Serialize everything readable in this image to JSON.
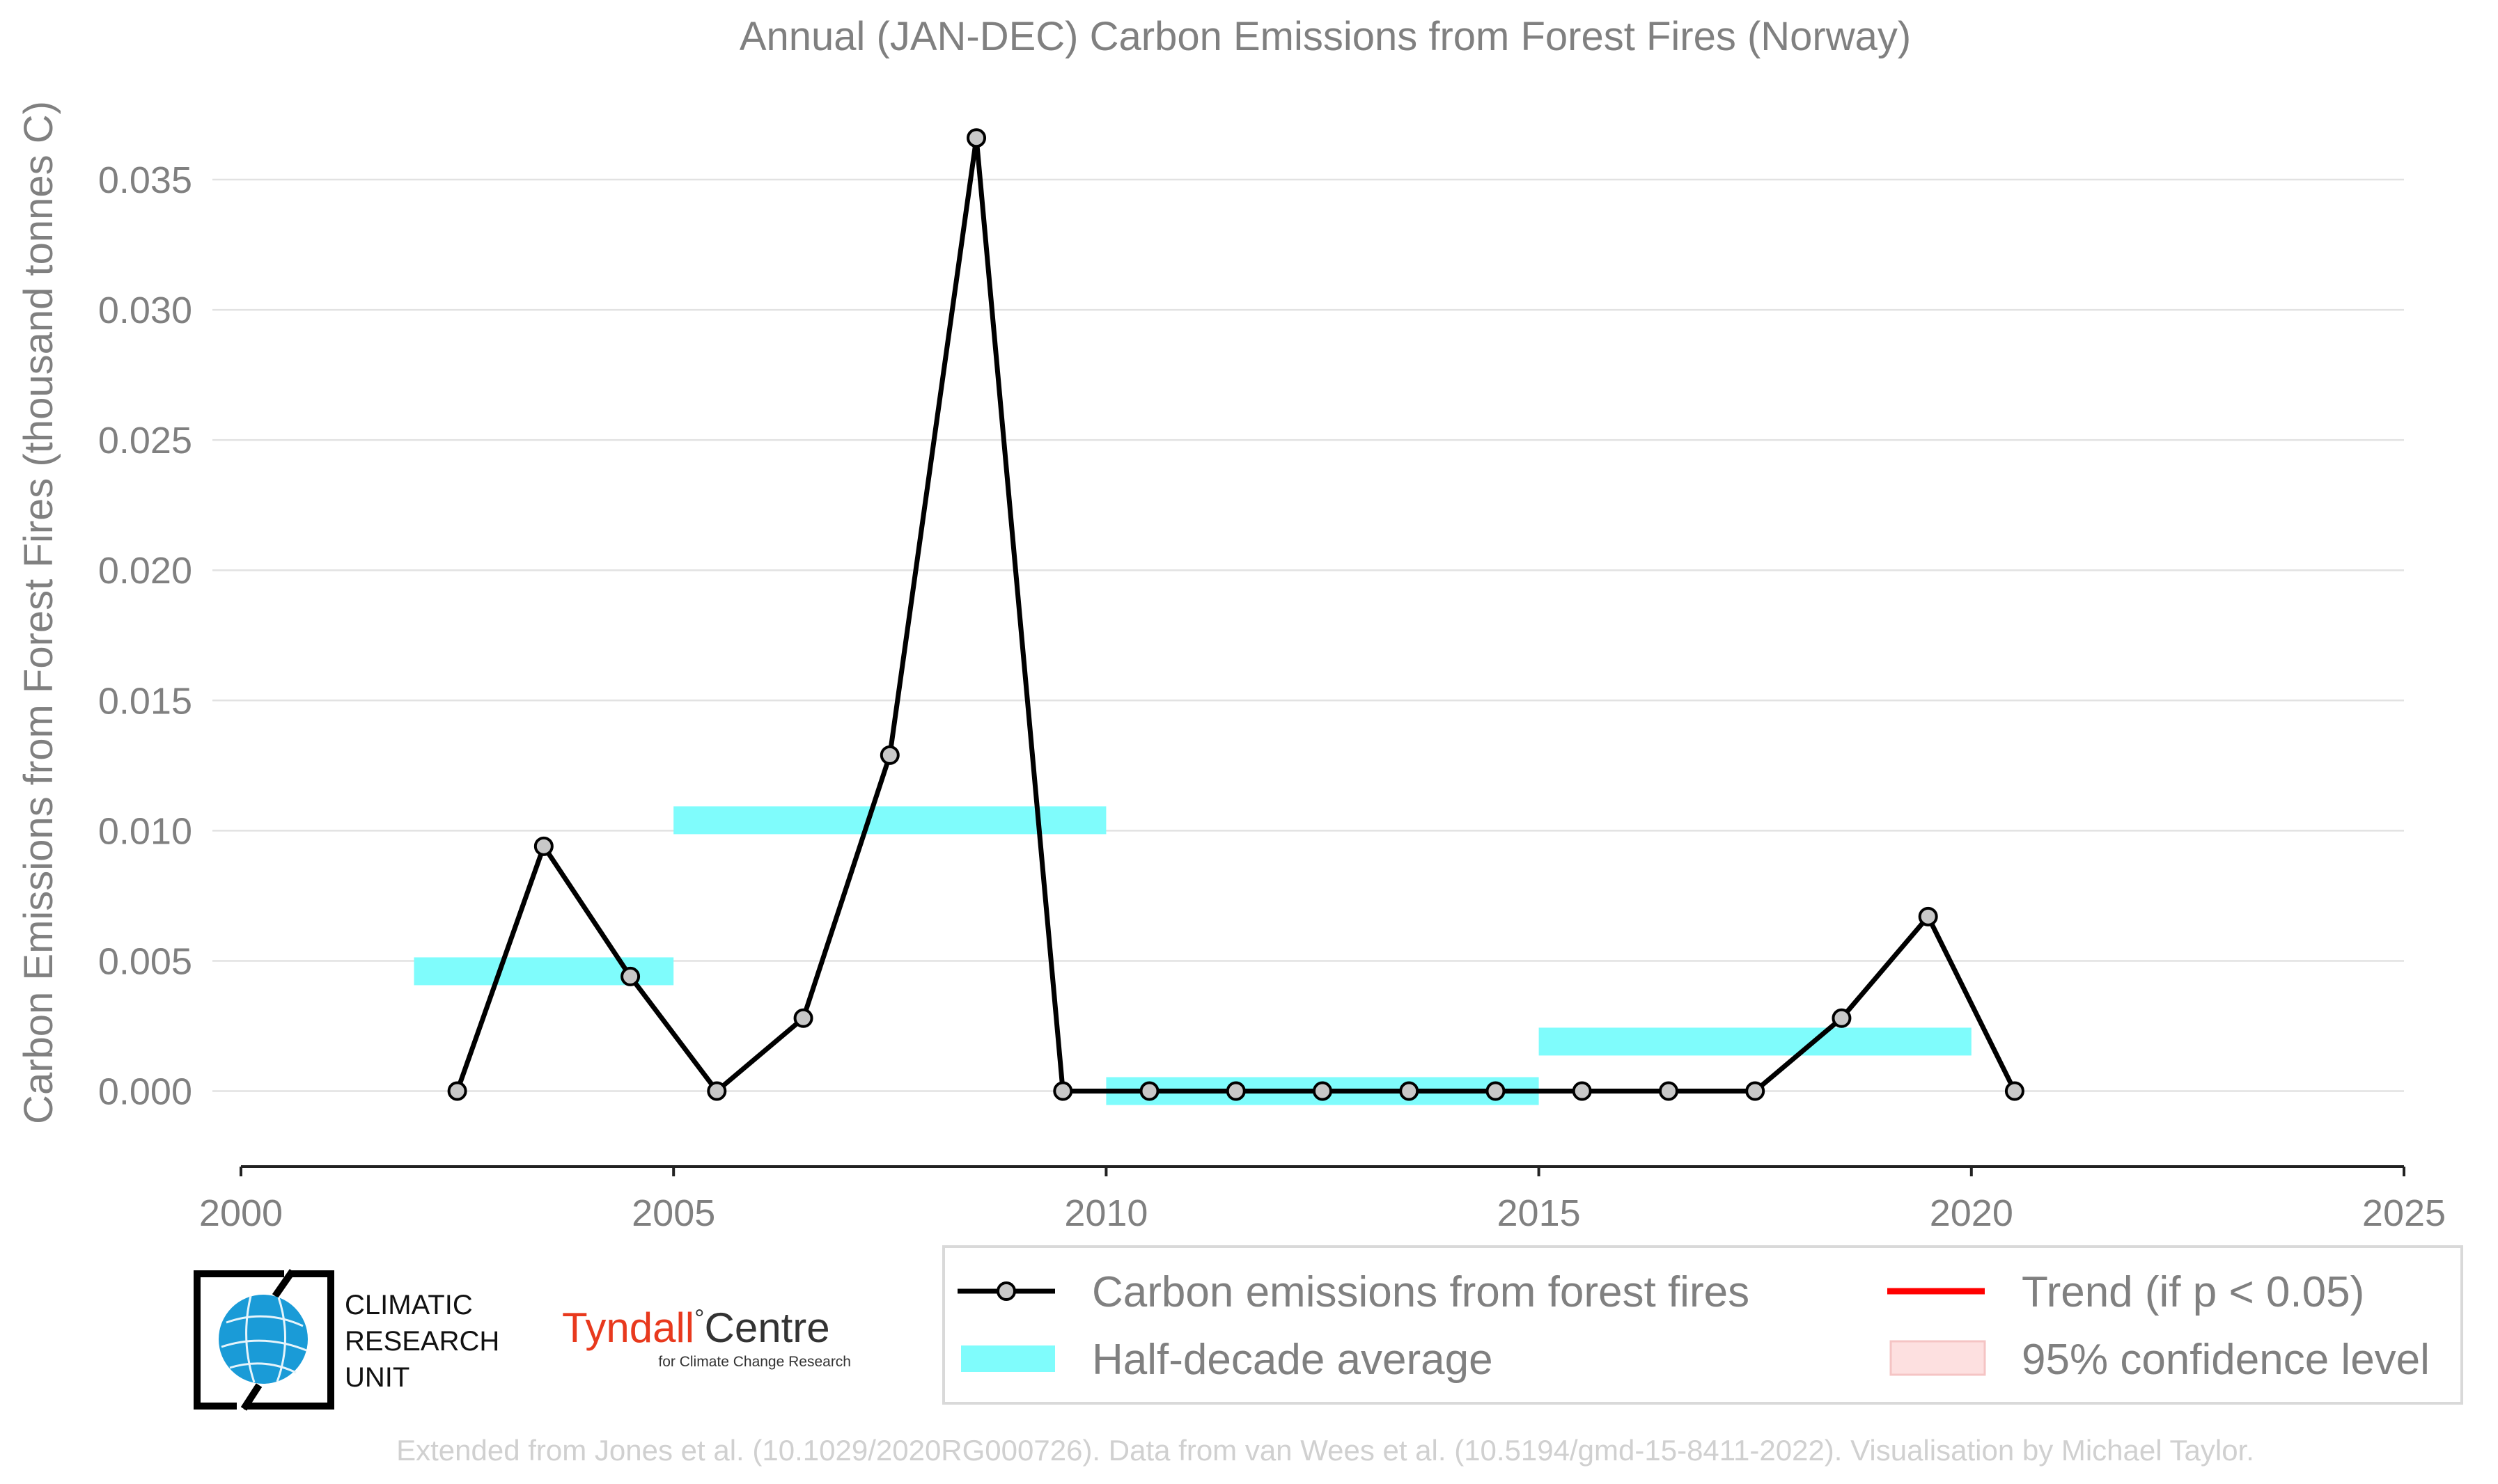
{
  "chart_data": {
    "type": "line",
    "title": "Annual (JAN-DEC) Carbon Emissions from Forest Fires (Norway)",
    "xlabel": "",
    "ylabel": "Carbon Emissions from Forest Fires (thousand tonnes C)",
    "xlim": [
      2000,
      2025
    ],
    "ylim": [
      -0.0029,
      0.0373
    ],
    "xticks": [
      "2000",
      "2005",
      "2010",
      "2015",
      "2020",
      "2025"
    ],
    "yticks": [
      "0.000",
      "0.005",
      "0.010",
      "0.015",
      "0.020",
      "0.025",
      "0.030",
      "0.035"
    ],
    "grid": true,
    "series": [
      {
        "name": "Carbon emissions from forest fires",
        "color": "#000000",
        "marker_fill": "#c8c8c8",
        "x": [
          2002.5,
          2003.5,
          2004.5,
          2005.5,
          2006.5,
          2007.5,
          2008.5,
          2009.5,
          2010.5,
          2011.5,
          2012.5,
          2013.5,
          2014.5,
          2015.5,
          2016.5,
          2017.5,
          2018.5,
          2019.5,
          2020.5
        ],
        "values": [
          0.0,
          0.0094,
          0.0044,
          0.0,
          0.0028,
          0.0129,
          0.0366,
          0.0,
          0.0,
          0.0,
          0.0,
          0.0,
          0.0,
          0.0,
          0.0,
          0.0,
          0.0028,
          0.0067,
          0.0
        ]
      }
    ],
    "half_decade_average": {
      "name": "Half-decade average",
      "color": "#7ffcfc",
      "segments": [
        {
          "x0": 2002,
          "x1": 2005,
          "value": 0.0046
        },
        {
          "x0": 2005,
          "x1": 2010,
          "value": 0.0104
        },
        {
          "x0": 2010,
          "x1": 2015,
          "value": 0.0
        },
        {
          "x0": 2015,
          "x1": 2020,
          "value": 0.0019
        }
      ]
    },
    "legend": {
      "placement": "bottom-right",
      "items": [
        {
          "label": "Carbon emissions from forest fires",
          "kind": "line-marker",
          "color": "#000000"
        },
        {
          "label": "Trend (if p < 0.05)",
          "kind": "line",
          "color": "#ff0000"
        },
        {
          "label": "Half-decade average",
          "kind": "band",
          "color": "#7ffcfc"
        },
        {
          "label": "95% confidence level",
          "kind": "patch",
          "color": "#fde0e0"
        }
      ]
    }
  },
  "logos": {
    "cru": [
      "CLIMATIC",
      "RESEARCH",
      "UNIT"
    ],
    "tyndall_main": "Tyndall",
    "tyndall_degree": "°",
    "tyndall_centre": "Centre",
    "tyndall_sub": "for Climate Change Research"
  },
  "credit": "Extended from Jones et al. (10.1029/2020RG000726). Data from van Wees et al. (10.5194/gmd-15-8411-2022). Visualisation by Michael Taylor."
}
